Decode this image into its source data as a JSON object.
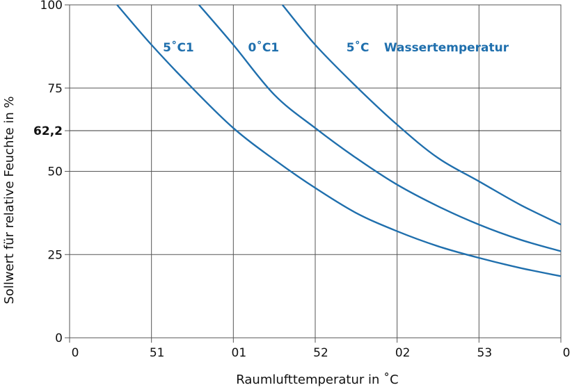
{
  "chart_data": {
    "type": "line",
    "title": "",
    "xlabel": "Raumlufttemperatur in ˚C",
    "ylabel": "Sollwert für relative Feuchte in %",
    "xlim": [
      0,
      30
    ],
    "ylim": [
      0,
      100
    ],
    "x_ticks": [
      {
        "value": 0,
        "label": "0"
      },
      {
        "value": 5,
        "label": "51"
      },
      {
        "value": 10,
        "label": "01"
      },
      {
        "value": 15,
        "label": "52"
      },
      {
        "value": 20,
        "label": "02"
      },
      {
        "value": 25,
        "label": "53"
      },
      {
        "value": 30,
        "label": "0"
      }
    ],
    "y_ticks": [
      {
        "value": 0,
        "label": "0",
        "bold": false
      },
      {
        "value": 25,
        "label": "25",
        "bold": false
      },
      {
        "value": 50,
        "label": "50",
        "bold": false
      },
      {
        "value": 62.2,
        "label": "62,2",
        "bold": true
      },
      {
        "value": 75,
        "label": "75",
        "bold": false
      },
      {
        "value": 100,
        "label": "100",
        "bold": false
      }
    ],
    "grid": true,
    "line_color": "#1f6fad",
    "series": [
      {
        "name": "5˚C1",
        "label_at": [
          5.7,
          86
        ],
        "points": [
          [
            2.9,
            100
          ],
          [
            5,
            88
          ],
          [
            7.5,
            75
          ],
          [
            10,
            63
          ],
          [
            12.5,
            53.5
          ],
          [
            15,
            45
          ],
          [
            17.5,
            37.5
          ],
          [
            20,
            32
          ],
          [
            22.5,
            27.5
          ],
          [
            25,
            24
          ],
          [
            27.5,
            21
          ],
          [
            30,
            18.5
          ]
        ]
      },
      {
        "name": "0˚C1",
        "label_at": [
          10.9,
          86
        ],
        "points": [
          [
            7.9,
            100
          ],
          [
            10,
            88
          ],
          [
            12.5,
            73
          ],
          [
            15,
            63
          ],
          [
            17.5,
            54
          ],
          [
            20,
            46
          ],
          [
            22.5,
            39.5
          ],
          [
            25,
            34
          ],
          [
            27.5,
            29.5
          ],
          [
            30,
            26
          ]
        ]
      },
      {
        "name": "5˚C",
        "label_at": [
          16.9,
          86
        ],
        "points": [
          [
            13,
            100
          ],
          [
            15,
            88
          ],
          [
            17.5,
            75.5
          ],
          [
            20,
            64
          ],
          [
            22.5,
            54
          ],
          [
            25,
            47
          ],
          [
            27.5,
            40
          ],
          [
            30,
            34
          ]
        ]
      }
    ],
    "legend_text": "Wassertemperatur",
    "legend_at": [
      19.2,
      86
    ]
  }
}
